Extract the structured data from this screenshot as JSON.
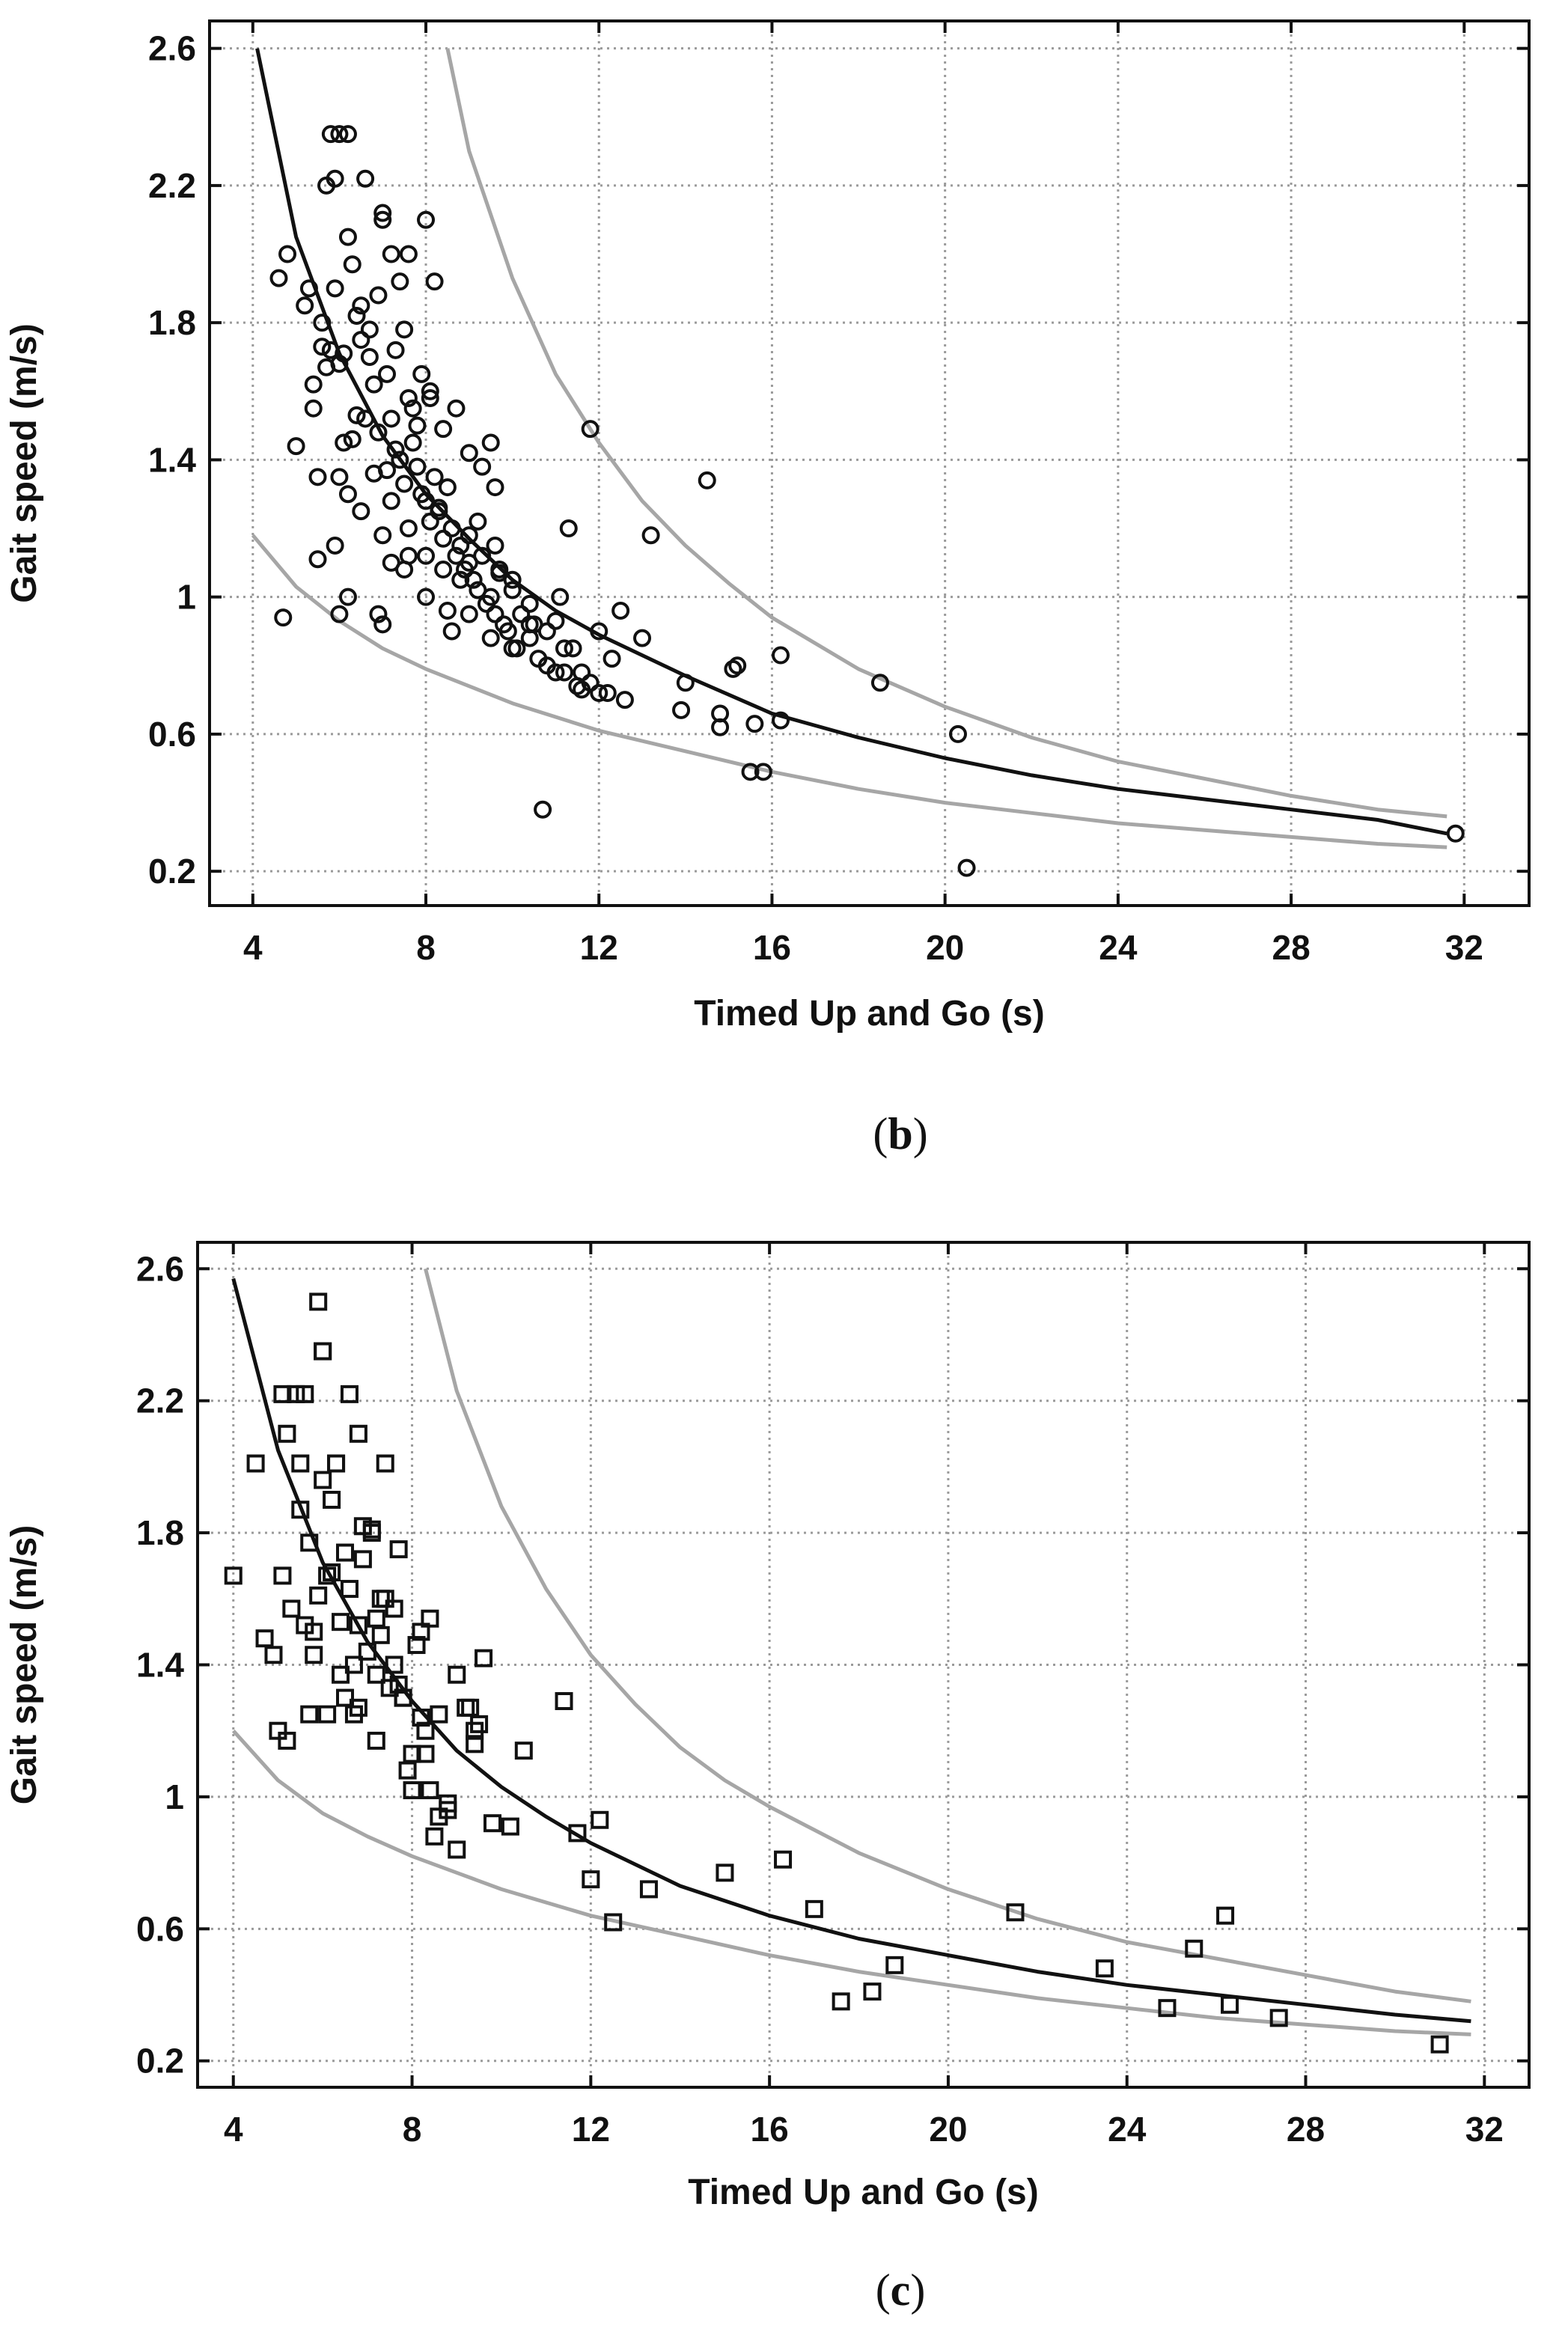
{
  "colors": {
    "fit": "#111111",
    "bounds": "#a6a6a6",
    "points": "#111111",
    "grid": "#9a9a9a"
  },
  "chart_data": [
    {
      "type": "scatter",
      "panel_label": "b",
      "xlabel": "Timed Up and Go (s)",
      "ylabel": "Gait speed (m/s)",
      "xlim": [
        3,
        33.5
      ],
      "ylim": [
        0.1,
        2.68
      ],
      "xticks": [
        4,
        8,
        12,
        16,
        20,
        24,
        28,
        32
      ],
      "yticks": [
        0.2,
        0.6,
        1,
        1.4,
        1.8,
        2.2,
        2.6
      ],
      "ytick_labels": [
        "0.2",
        "0.6",
        "1",
        "1.4",
        "1.8",
        "2.2",
        "2.6"
      ],
      "marker": "circle",
      "grid": true,
      "series": [
        {
          "name": "observations",
          "kind": "points",
          "x": [
            4.6,
            4.8,
            5.0,
            5.2,
            5.3,
            5.4,
            5.5,
            5.6,
            5.7,
            5.8,
            5.9,
            6.0,
            6.1,
            6.2,
            6.3,
            6.4,
            6.5,
            6.6,
            6.7,
            6.8,
            6.9,
            7.0,
            7.1,
            7.2,
            7.3,
            7.4,
            7.5,
            7.6,
            7.7,
            7.8,
            7.9,
            8.0,
            8.1,
            8.2,
            8.3,
            8.4,
            8.5,
            8.6,
            8.7,
            8.8,
            8.9,
            9.0,
            9.1,
            9.2,
            9.3,
            9.4,
            9.5,
            9.6,
            9.7,
            9.8,
            9.9,
            10.0,
            10.2,
            10.4,
            10.6,
            10.8,
            11.0,
            11.2,
            11.4,
            11.6,
            11.8,
            12.0,
            12.3,
            12.6,
            13.0,
            13.9,
            14.5,
            14.8,
            15.2,
            15.6,
            16.2,
            18.5,
            20.3,
            20.5,
            31.8,
            5.8,
            6.0,
            6.2,
            6.6,
            7.0,
            7.2,
            7.4,
            7.6,
            8.0,
            8.2,
            5.6,
            5.9,
            6.3,
            6.5,
            6.7,
            6.9,
            7.1,
            7.3,
            7.5,
            7.7,
            7.9,
            8.1,
            8.4,
            8.7,
            9.0,
            9.3,
            9.6,
            5.4,
            5.7,
            6.1,
            6.4,
            6.8,
            7.2,
            7.6,
            8.0,
            8.4,
            8.8,
            9.2,
            9.6,
            10.0,
            10.4,
            10.8,
            11.2,
            11.6,
            5.5,
            6.0,
            6.5,
            7.0,
            7.5,
            8.0,
            8.5,
            9.0,
            9.5,
            10.0,
            10.5,
            11.0,
            11.5,
            12.0,
            6.2,
            6.9,
            7.6,
            8.3,
            9.0,
            9.7,
            10.4,
            11.1,
            11.8,
            12.5,
            13.2,
            14.8,
            15.1,
            15.8,
            16.2,
            10.7,
            6.0,
            7.0,
            8.1,
            4.7,
            5.9,
            6.2,
            7.2,
            7.8,
            8.6,
            9.5,
            10.1,
            11.3,
            12.2,
            14.0,
            15.5
          ],
          "y": [
            1.93,
            2.0,
            1.44,
            1.85,
            1.9,
            1.55,
            1.35,
            1.8,
            2.2,
            1.72,
            2.22,
            1.68,
            1.71,
            2.05,
            1.46,
            1.82,
            1.75,
            1.52,
            1.78,
            1.62,
            1.48,
            2.1,
            1.37,
            1.52,
            1.43,
            1.4,
            1.33,
            1.58,
            1.45,
            1.38,
            1.3,
            1.28,
            1.22,
            1.35,
            1.25,
            1.17,
            1.32,
            1.2,
            1.12,
            1.15,
            1.08,
            1.1,
            1.05,
            1.02,
            1.12,
            0.98,
            1.0,
            0.95,
            1.08,
            0.92,
            0.9,
            1.05,
            0.95,
            0.88,
            0.82,
            0.8,
            0.93,
            0.78,
            0.85,
            0.73,
            0.75,
            0.9,
            0.82,
            0.7,
            0.88,
            0.67,
            1.34,
            0.66,
            0.8,
            0.63,
            0.64,
            0.75,
            0.6,
            0.21,
            0.31,
            2.35,
            2.35,
            2.35,
            2.22,
            2.12,
            2.0,
            1.92,
            2.0,
            2.1,
            1.92,
            1.73,
            1.9,
            1.97,
            1.85,
            1.7,
            1.88,
            1.65,
            1.72,
            1.78,
            1.55,
            1.65,
            1.58,
            1.49,
            1.55,
            1.42,
            1.38,
            1.32,
            1.62,
            1.67,
            1.45,
            1.53,
            1.36,
            1.28,
            1.2,
            1.12,
            1.08,
            1.05,
            1.22,
            1.15,
            1.02,
            0.98,
            0.9,
            0.85,
            0.78,
            1.11,
            1.35,
            1.25,
            1.18,
            1.08,
            1.0,
            0.96,
            0.95,
            0.88,
            0.85,
            0.92,
            0.78,
            0.74,
            0.72,
            1.0,
            0.95,
            1.12,
            1.26,
            1.18,
            1.07,
            0.92,
            1.0,
            1.49,
            0.96,
            1.18,
            0.62,
            0.79,
            0.49,
            0.83,
            0.38,
            0.95,
            0.92,
            1.6,
            0.94,
            1.15,
            1.3,
            1.1,
            1.5,
            0.9,
            1.45,
            0.85,
            1.2,
            0.72,
            0.75,
            0.49
          ]
        },
        {
          "name": "fit",
          "kind": "line",
          "x": [
            4.1,
            5,
            6,
            7,
            8,
            9,
            10,
            11,
            12,
            14,
            16,
            18,
            20,
            22,
            24,
            26,
            28,
            30,
            31.6
          ],
          "y": [
            2.6,
            2.05,
            1.71,
            1.47,
            1.3,
            1.17,
            1.05,
            0.96,
            0.89,
            0.77,
            0.66,
            0.59,
            0.53,
            0.48,
            0.44,
            0.41,
            0.38,
            0.35,
            0.31
          ]
        },
        {
          "name": "upper",
          "kind": "line",
          "x": [
            8.5,
            9,
            10,
            11,
            12,
            13,
            14,
            15,
            16,
            18,
            20,
            22,
            24,
            26,
            28,
            30,
            31.6
          ],
          "y": [
            2.6,
            2.3,
            1.93,
            1.65,
            1.45,
            1.28,
            1.15,
            1.04,
            0.94,
            0.79,
            0.68,
            0.59,
            0.52,
            0.47,
            0.42,
            0.38,
            0.36
          ]
        },
        {
          "name": "lower",
          "kind": "line",
          "x": [
            4.0,
            5,
            6,
            7,
            8,
            9,
            10,
            12,
            14,
            16,
            18,
            20,
            22,
            24,
            26,
            28,
            30,
            31.6
          ],
          "y": [
            1.18,
            1.03,
            0.93,
            0.85,
            0.79,
            0.74,
            0.69,
            0.61,
            0.55,
            0.49,
            0.44,
            0.4,
            0.37,
            0.34,
            0.32,
            0.3,
            0.28,
            0.27
          ]
        }
      ]
    },
    {
      "type": "scatter",
      "panel_label": "c",
      "xlabel": "Timed Up and Go (s)",
      "ylabel": "Gait speed (m/s)",
      "xlim": [
        3.2,
        33.0
      ],
      "ylim": [
        0.12,
        2.68
      ],
      "xticks": [
        4,
        8,
        12,
        16,
        20,
        24,
        28,
        32
      ],
      "yticks": [
        0.2,
        0.6,
        1,
        1.4,
        1.8,
        2.2,
        2.6
      ],
      "ytick_labels": [
        "0.2",
        "0.6",
        "1",
        "1.4",
        "1.8",
        "2.2",
        "2.6"
      ],
      "marker": "square",
      "grid": true,
      "series": [
        {
          "name": "observations",
          "kind": "points",
          "x": [
            4.0,
            4.5,
            4.7,
            4.9,
            5.0,
            5.1,
            5.2,
            5.3,
            5.5,
            5.6,
            5.7,
            5.8,
            5.9,
            6.0,
            6.1,
            6.2,
            6.3,
            6.4,
            6.5,
            6.6,
            6.7,
            6.8,
            6.9,
            7.0,
            7.1,
            7.2,
            7.3,
            7.4,
            7.5,
            7.6,
            7.7,
            7.8,
            7.9,
            8.0,
            8.1,
            8.2,
            8.3,
            8.4,
            8.5,
            8.6,
            8.8,
            9.0,
            9.2,
            9.4,
            9.5,
            9.6,
            9.8,
            10.2,
            10.5,
            11.4,
            11.7,
            12.0,
            12.2,
            12.5,
            13.3,
            15.0,
            16.3,
            17.0,
            17.6,
            18.3,
            18.8,
            21.5,
            23.5,
            24.9,
            25.5,
            26.2,
            26.3,
            27.4,
            31.0,
            5.1,
            5.4,
            5.6,
            5.9,
            6.0,
            6.3,
            6.6,
            6.8,
            7.1,
            7.3,
            5.5,
            5.8,
            6.1,
            6.5,
            6.9,
            7.4,
            7.8,
            8.2,
            8.6,
            9.0,
            9.4,
            6.0,
            6.4,
            6.8,
            7.2,
            7.6,
            8.0,
            8.4,
            8.8,
            5.2,
            5.7,
            6.2,
            6.7,
            7.2,
            7.7,
            8.3,
            9.3
          ],
          "y": [
            1.67,
            2.01,
            1.48,
            1.43,
            1.2,
            1.67,
            1.17,
            1.57,
            1.87,
            1.52,
            1.77,
            1.43,
            1.61,
            1.96,
            1.67,
            1.9,
            2.01,
            1.53,
            1.74,
            1.63,
            1.25,
            1.52,
            1.72,
            1.44,
            1.81,
            1.54,
            1.49,
            2.01,
            1.33,
            1.57,
            1.75,
            1.3,
            1.08,
            1.02,
            1.46,
            1.24,
            1.13,
            1.54,
            0.88,
            1.25,
            0.96,
            1.37,
            1.27,
            1.16,
            1.22,
            1.42,
            0.92,
            0.91,
            1.14,
            1.29,
            0.89,
            0.75,
            0.93,
            0.62,
            0.72,
            0.77,
            0.81,
            0.66,
            0.38,
            0.41,
            0.49,
            0.65,
            0.48,
            0.36,
            0.54,
            0.64,
            0.37,
            0.33,
            0.25,
            2.22,
            2.22,
            2.22,
            2.5,
            2.35,
            2.01,
            2.22,
            2.1,
            1.8,
            1.6,
            2.01,
            1.5,
            1.25,
            1.3,
            1.82,
            1.6,
            1.3,
            1.5,
            0.94,
            0.84,
            1.2,
            2.35,
            1.37,
            1.27,
            1.17,
            1.4,
            1.13,
            1.02,
            0.98,
            2.1,
            1.25,
            1.68,
            1.4,
            1.37,
            1.34,
            1.2,
            1.27
          ]
        },
        {
          "name": "fit",
          "kind": "line",
          "x": [
            4.0,
            5,
            6,
            7,
            8,
            9,
            10,
            11,
            12,
            14,
            16,
            18,
            20,
            22,
            24,
            26,
            28,
            30,
            31.7
          ],
          "y": [
            2.57,
            2.05,
            1.71,
            1.47,
            1.29,
            1.14,
            1.03,
            0.94,
            0.86,
            0.73,
            0.64,
            0.57,
            0.52,
            0.47,
            0.43,
            0.4,
            0.37,
            0.34,
            0.32
          ]
        },
        {
          "name": "upper",
          "kind": "line",
          "x": [
            8.3,
            9,
            10,
            11,
            12,
            13,
            14,
            15,
            16,
            18,
            20,
            22,
            24,
            26,
            28,
            30,
            31.7
          ],
          "y": [
            2.6,
            2.23,
            1.88,
            1.63,
            1.43,
            1.28,
            1.15,
            1.05,
            0.97,
            0.83,
            0.72,
            0.63,
            0.56,
            0.51,
            0.46,
            0.41,
            0.38
          ]
        },
        {
          "name": "lower",
          "kind": "line",
          "x": [
            4.0,
            5,
            6,
            7,
            8,
            9,
            10,
            12,
            14,
            16,
            18,
            20,
            22,
            24,
            26,
            28,
            30,
            31.7
          ],
          "y": [
            1.2,
            1.05,
            0.95,
            0.88,
            0.82,
            0.77,
            0.72,
            0.64,
            0.58,
            0.52,
            0.47,
            0.43,
            0.39,
            0.36,
            0.33,
            0.31,
            0.29,
            0.28
          ]
        }
      ]
    }
  ]
}
